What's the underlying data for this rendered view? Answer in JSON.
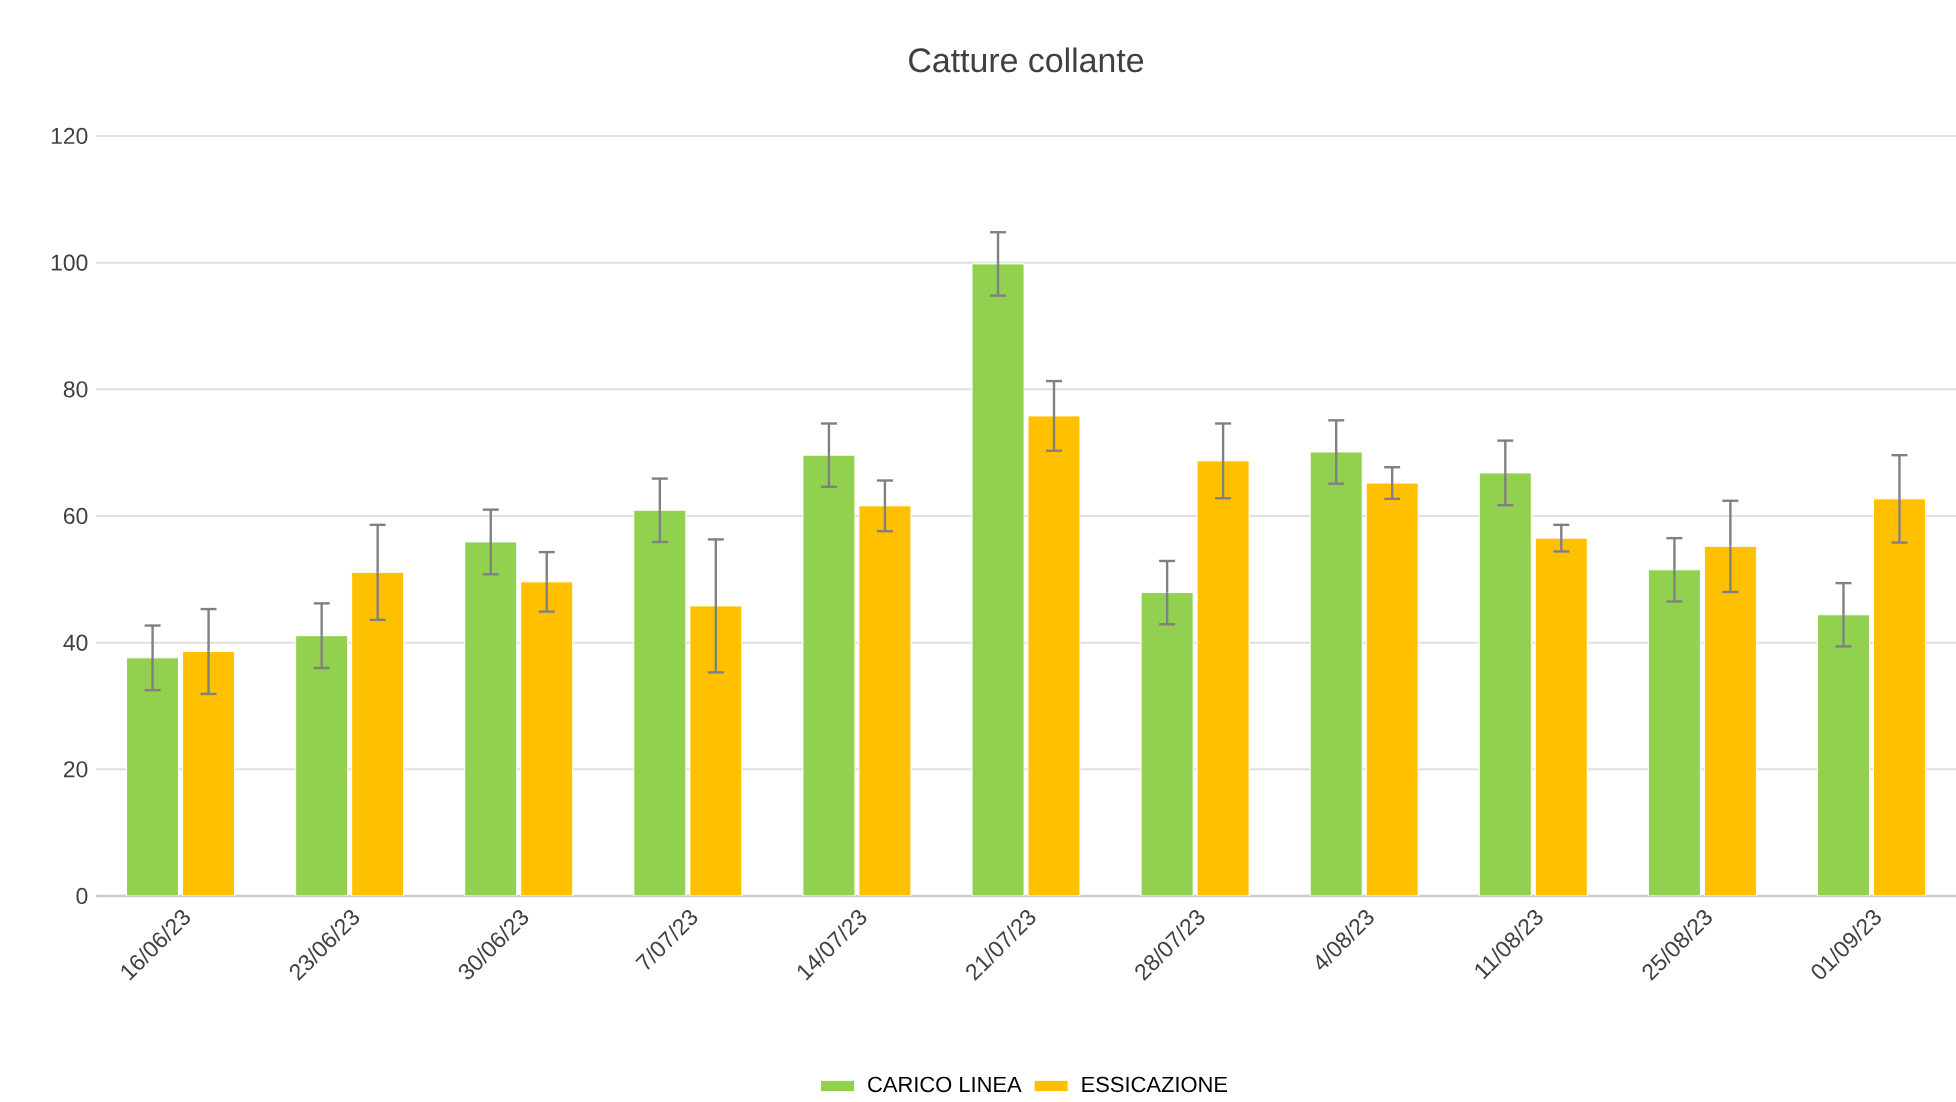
{
  "chart_data": {
    "type": "bar",
    "title": "Catture collante",
    "categories": [
      "16/06/23",
      "23/06/23",
      "30/06/23",
      "7/07/23",
      "14/07/23",
      "21/07/23",
      "28/07/23",
      "4/08/23",
      "11/08/23",
      "25/08/23",
      "01/09/23"
    ],
    "series": [
      {
        "name": "CARICO LINEA",
        "color": "#92d050",
        "values": [
          37.6,
          41.1,
          55.9,
          60.9,
          69.6,
          99.8,
          47.9,
          70.1,
          66.8,
          51.5,
          44.4
        ],
        "errors": [
          5.1,
          5.1,
          5.1,
          5,
          5,
          5,
          5,
          5,
          5.1,
          5,
          5
        ]
      },
      {
        "name": "ESSICAZIONE",
        "color": "#ffc000",
        "values": [
          38.6,
          51.1,
          49.6,
          45.8,
          61.6,
          75.8,
          68.7,
          65.2,
          56.5,
          55.2,
          62.7
        ],
        "errors": [
          6.7,
          7.5,
          4.7,
          10.5,
          4,
          5.5,
          5.9,
          2.5,
          2.1,
          7.2,
          6.9
        ]
      }
    ],
    "ylim": [
      0,
      120
    ],
    "yticks": [
      0,
      20,
      40,
      60,
      80,
      100,
      120
    ],
    "grid": "y",
    "legend": "bottom"
  }
}
